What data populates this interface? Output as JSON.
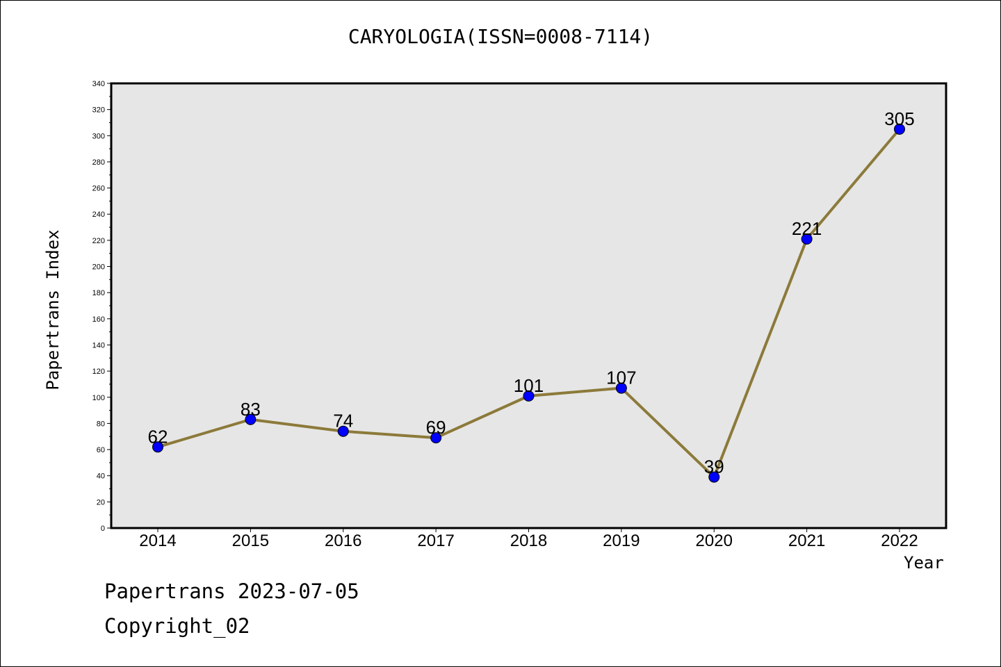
{
  "chart_data": {
    "type": "line",
    "title": "CARYOLOGIA(ISSN=0008-7114)",
    "xlabel": "Year",
    "ylabel": "Papertrans Index",
    "categories": [
      "2014",
      "2015",
      "2016",
      "2017",
      "2018",
      "2019",
      "2020",
      "2021",
      "2022"
    ],
    "series": [
      {
        "values": [
          62,
          83,
          74,
          69,
          101,
          107,
          39,
          221,
          305
        ]
      }
    ],
    "data_labels": [
      "62",
      "83",
      "74",
      "69",
      "101",
      "107",
      "39",
      "221",
      "305"
    ],
    "ylim": [
      0,
      340
    ],
    "yticks": [
      "0",
      "20",
      "40",
      "60",
      "80",
      "100",
      "120",
      "140",
      "160",
      "180",
      "200",
      "220",
      "240",
      "260",
      "280",
      "300",
      "320",
      "340"
    ],
    "grid": false,
    "colors": {
      "line": "#8c7a3a",
      "marker": "#0000ff",
      "plot_bg": "#e6e6e6"
    }
  },
  "footer": {
    "line1": "Papertrans 2023-07-05",
    "line2": "Copyright_02"
  }
}
